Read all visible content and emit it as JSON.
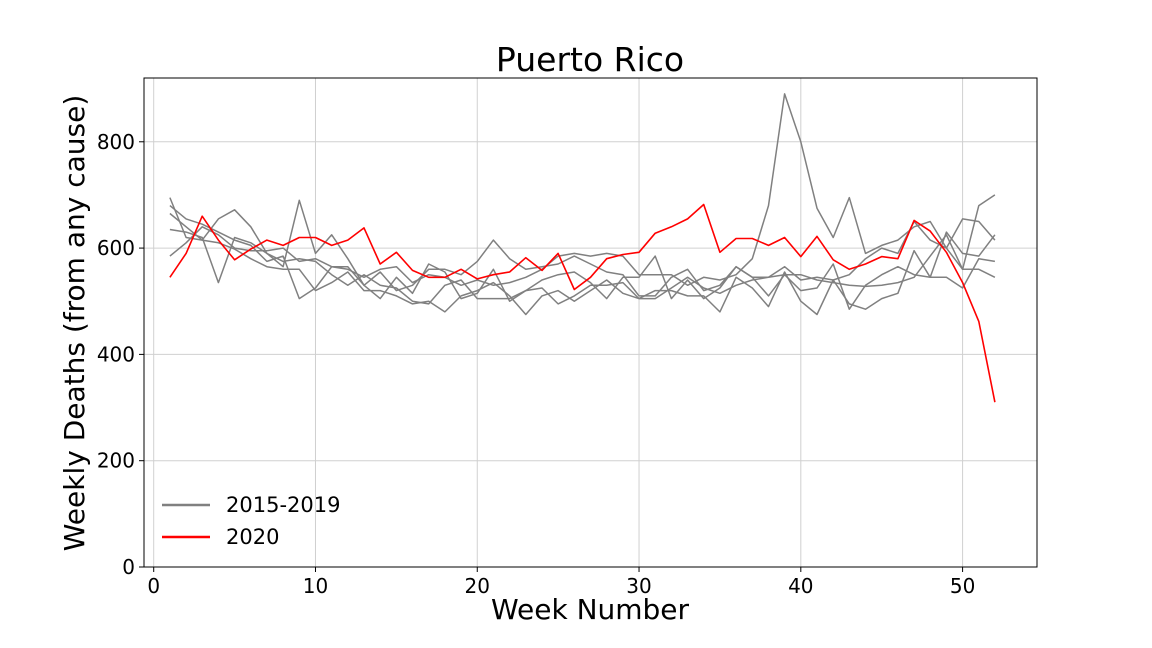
{
  "chart_data": {
    "type": "line",
    "title": "Puerto Rico",
    "xlabel": "Week Number",
    "ylabel": "Weekly Deaths (from any cause)",
    "xlim": [
      -0.6,
      54.6
    ],
    "ylim": [
      0,
      920
    ],
    "xticks": [
      0,
      10,
      20,
      30,
      40,
      50
    ],
    "yticks": [
      0,
      200,
      400,
      600,
      800
    ],
    "grid": true,
    "legend": {
      "placement": "lower-left",
      "entries": [
        "2015-2019",
        "2020"
      ]
    },
    "colors": {
      "baseline": "#808080",
      "current": "#ff0000"
    },
    "x": [
      1,
      2,
      3,
      4,
      5,
      6,
      7,
      8,
      9,
      10,
      11,
      12,
      13,
      14,
      15,
      16,
      17,
      18,
      19,
      20,
      21,
      22,
      23,
      24,
      25,
      26,
      27,
      28,
      29,
      30,
      31,
      32,
      33,
      34,
      35,
      36,
      37,
      38,
      39,
      40,
      41,
      42,
      43,
      44,
      45,
      46,
      47,
      48,
      49,
      50,
      51,
      52
    ],
    "series": [
      {
        "group": "2015-2019",
        "values": [
          695,
          620,
          615,
          655,
          672,
          640,
          590,
          565,
          690,
          590,
          625,
          580,
          530,
          555,
          520,
          530,
          560,
          560,
          550,
          575,
          615,
          580,
          560,
          565,
          570,
          585,
          570,
          555,
          550,
          510,
          510,
          545,
          560,
          520,
          530,
          565,
          545,
          545,
          565,
          540,
          545,
          540,
          550,
          580,
          600,
          590,
          650,
          615,
          600,
          655,
          650,
          615
        ]
      },
      {
        "group": "2015-2019",
        "values": [
          665,
          640,
          615,
          610,
          598,
          580,
          565,
          560,
          560,
          520,
          535,
          555,
          520,
          520,
          510,
          495,
          500,
          480,
          510,
          520,
          535,
          510,
          475,
          510,
          520,
          500,
          520,
          540,
          515,
          505,
          520,
          520,
          510,
          510,
          480,
          545,
          525,
          490,
          555,
          500,
          475,
          540,
          495,
          485,
          505,
          515,
          595,
          545,
          545,
          525,
          580,
          575
        ]
      },
      {
        "group": "2015-2019",
        "values": [
          635,
          630,
          620,
          535,
          620,
          610,
          590,
          575,
          580,
          575,
          550,
          530,
          550,
          530,
          525,
          500,
          495,
          530,
          540,
          505,
          505,
          505,
          520,
          525,
          495,
          510,
          530,
          530,
          535,
          505,
          505,
          525,
          545,
          525,
          515,
          530,
          540,
          545,
          550,
          550,
          540,
          535,
          530,
          528,
          530,
          535,
          545,
          585,
          625,
          560,
          560,
          545
        ]
      },
      {
        "group": "2015-2019",
        "values": [
          585,
          610,
          640,
          625,
          600,
          595,
          595,
          600,
          575,
          580,
          565,
          560,
          545,
          560,
          565,
          535,
          550,
          545,
          530,
          540,
          530,
          535,
          545,
          560,
          585,
          590,
          585,
          590,
          585,
          550,
          550,
          550,
          530,
          545,
          540,
          550,
          580,
          680,
          890,
          800,
          675,
          620,
          695,
          590,
          605,
          615,
          640,
          650,
          600,
          560,
          680,
          700
        ]
      },
      {
        "group": "2015-2019",
        "values": [
          680,
          655,
          645,
          630,
          615,
          605,
          575,
          585,
          505,
          525,
          565,
          565,
          530,
          505,
          545,
          515,
          570,
          555,
          505,
          515,
          560,
          500,
          520,
          540,
          550,
          555,
          535,
          505,
          545,
          545,
          585,
          505,
          540,
          505,
          525,
          565,
          545,
          510,
          550,
          520,
          525,
          570,
          485,
          530,
          550,
          565,
          550,
          545,
          630,
          590,
          585,
          625
        ]
      },
      {
        "group": "2020",
        "values": [
          545,
          590,
          660,
          615,
          578,
          598,
          615,
          605,
          620,
          620,
          605,
          615,
          638,
          570,
          592,
          558,
          545,
          545,
          560,
          542,
          550,
          555,
          582,
          558,
          590,
          522,
          545,
          580,
          588,
          592,
          628,
          640,
          655,
          682,
          592,
          618,
          618,
          605,
          620,
          584,
          622,
          578,
          560,
          570,
          584,
          580,
          652,
          632,
          592,
          535,
          462,
          310
        ]
      }
    ]
  }
}
